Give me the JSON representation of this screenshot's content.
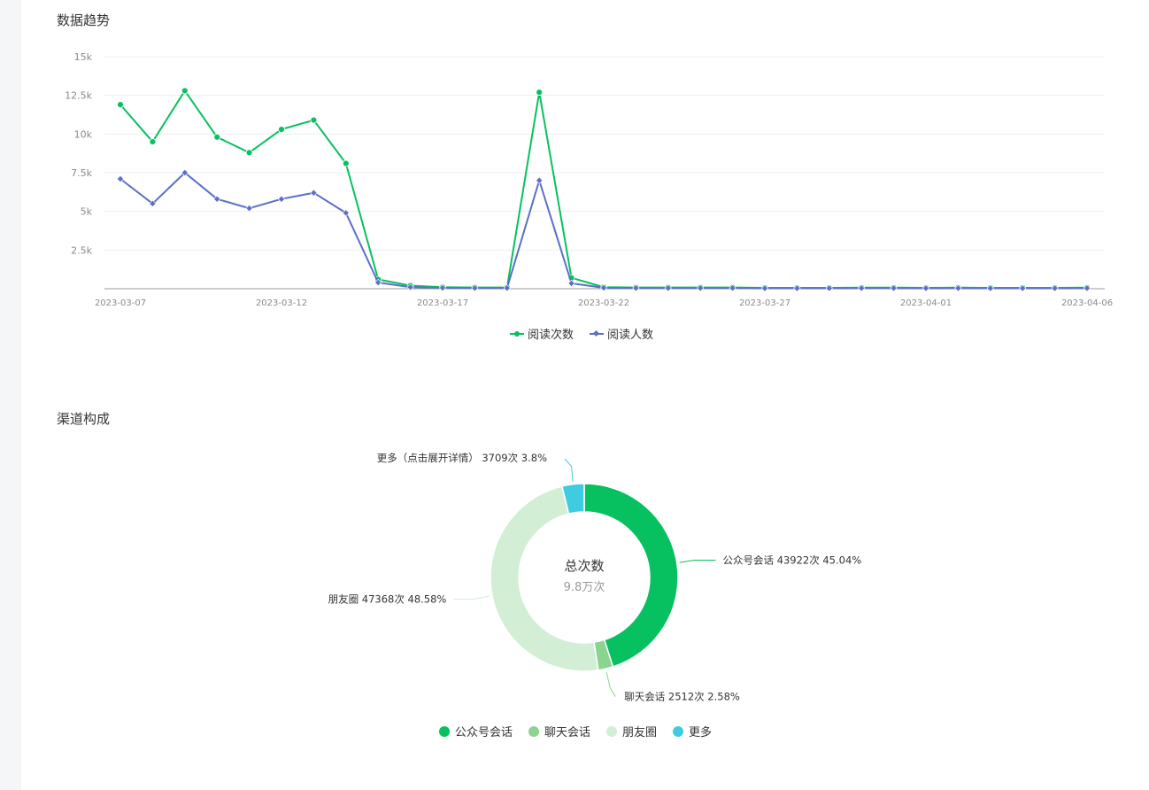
{
  "trend": {
    "title": "数据趋势",
    "legend": [
      {
        "name": "阅读次数",
        "color": "#07c160",
        "marker": "circle"
      },
      {
        "name": "阅读人数",
        "color": "#5b6fc6",
        "marker": "diamond"
      }
    ]
  },
  "channel": {
    "title": "渠道构成",
    "center_label": "总次数",
    "center_value": "9.8万次",
    "legend": [
      {
        "name": "公众号会话",
        "color": "#07c160"
      },
      {
        "name": "聊天会话",
        "color": "#8ad48f"
      },
      {
        "name": "朋友圈",
        "color": "#d2eed4"
      },
      {
        "name": "更多",
        "color": "#3fcbe0"
      }
    ]
  },
  "chart_data": [
    {
      "type": "line",
      "title": "",
      "xlabel": "",
      "ylabel": "",
      "ylim": [
        0,
        15000
      ],
      "yticks": [
        2500,
        5000,
        7500,
        10000,
        12500,
        15000
      ],
      "ytick_labels": [
        "2.5k",
        "5k",
        "7.5k",
        "10k",
        "12.5k",
        "15k"
      ],
      "xtick_labels": [
        "2023-03-07",
        "2023-03-12",
        "2023-03-17",
        "2023-03-22",
        "2023-03-27",
        "2023-04-01",
        "2023-04-06"
      ],
      "x": [
        "2023-03-07",
        "2023-03-08",
        "2023-03-09",
        "2023-03-10",
        "2023-03-11",
        "2023-03-12",
        "2023-03-13",
        "2023-03-14",
        "2023-03-15",
        "2023-03-16",
        "2023-03-17",
        "2023-03-18",
        "2023-03-19",
        "2023-03-20",
        "2023-03-21",
        "2023-03-22",
        "2023-03-23",
        "2023-03-24",
        "2023-03-25",
        "2023-03-26",
        "2023-03-27",
        "2023-03-28",
        "2023-03-29",
        "2023-03-30",
        "2023-03-31",
        "2023-04-01",
        "2023-04-02",
        "2023-04-03",
        "2023-04-04",
        "2023-04-05",
        "2023-04-06"
      ],
      "series": [
        {
          "name": "阅读次数",
          "color": "#07c160",
          "values": [
            11900,
            9500,
            12800,
            9800,
            8800,
            10300,
            10900,
            8100,
            600,
            200,
            100,
            80,
            80,
            12700,
            700,
            100,
            80,
            80,
            80,
            80,
            60,
            60,
            60,
            70,
            70,
            60,
            70,
            60,
            60,
            60,
            70
          ]
        },
        {
          "name": "阅读人数",
          "color": "#5b6fc6",
          "values": [
            7100,
            5500,
            7500,
            5800,
            5200,
            5800,
            6200,
            4900,
            400,
            100,
            60,
            40,
            40,
            7000,
            350,
            60,
            40,
            40,
            40,
            40,
            30,
            30,
            30,
            35,
            35,
            30,
            35,
            30,
            30,
            30,
            35
          ]
        }
      ],
      "grid": true,
      "legend_position": "bottom"
    },
    {
      "type": "pie",
      "title": "",
      "slices": [
        {
          "name": "公众号会话",
          "value": 43922,
          "percent": 45.04,
          "color": "#07c160",
          "label": "公众号会话 43922次 45.04%"
        },
        {
          "name": "聊天会话",
          "value": 2512,
          "percent": 2.58,
          "color": "#8ad48f",
          "label": "聊天会话 2512次 2.58%"
        },
        {
          "name": "朋友圈",
          "value": 47368,
          "percent": 48.58,
          "color": "#d2eed4",
          "label": "朋友圈 47368次 48.58%"
        },
        {
          "name": "更多",
          "value": 3709,
          "percent": 3.8,
          "color": "#3fcbe0",
          "label": "更多（点击展开详情） 3709次 3.8%"
        }
      ],
      "legend_position": "bottom"
    }
  ]
}
